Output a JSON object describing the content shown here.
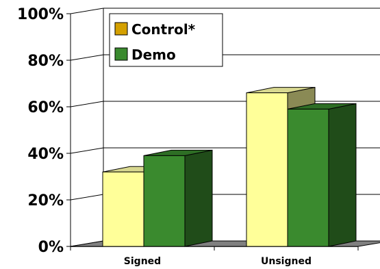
{
  "chart_data": {
    "type": "bar",
    "categories": [
      "Signed",
      "Unsigned"
    ],
    "series": [
      {
        "name": "Control*",
        "values": [
          32,
          66
        ],
        "color": "#FFFF99",
        "legend_color": "#D4A000"
      },
      {
        "name": "Demo",
        "values": [
          39,
          59
        ],
        "color": "#3A8A2E"
      }
    ],
    "ylim": [
      0,
      100
    ],
    "yticks": [
      "0%",
      "20%",
      "40%",
      "60%",
      "80%",
      "100%"
    ],
    "ytick_values": [
      0,
      20,
      40,
      60,
      80,
      100
    ],
    "grid": true,
    "legend_position": "top-left",
    "style": "3d-clustered"
  }
}
